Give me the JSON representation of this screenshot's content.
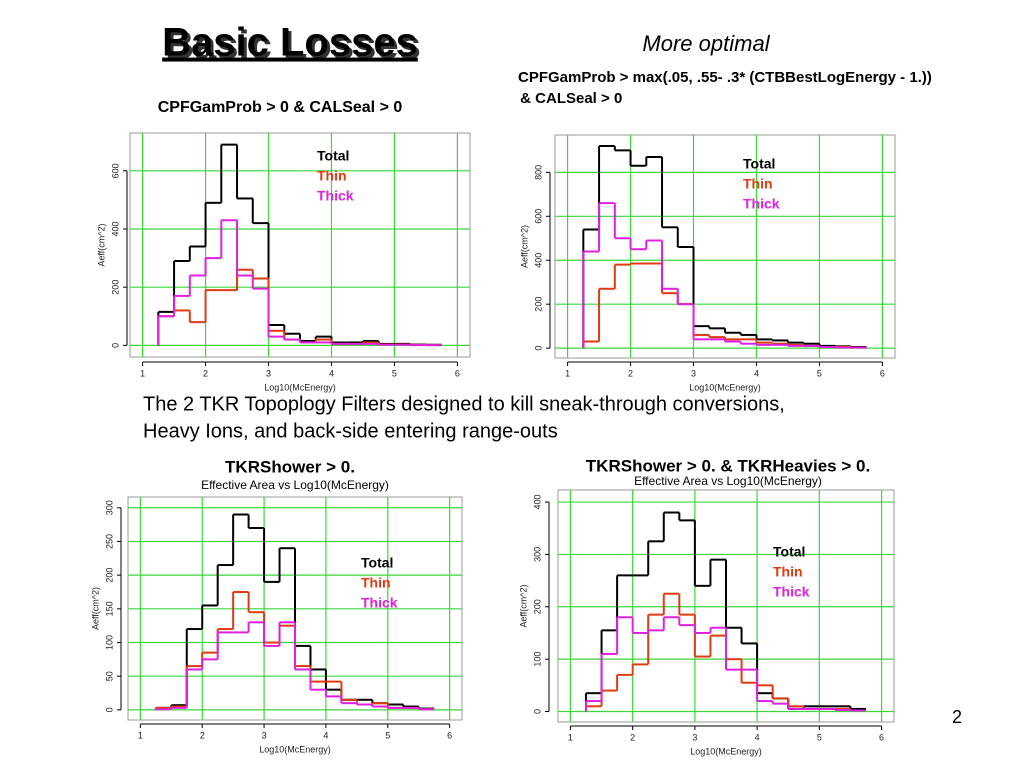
{
  "slide": {
    "title": "Basic Losses",
    "note": "More optimal",
    "body": [
      "The 2 TKR Topoplogy Filters designed to kill sneak-through conversions,",
      "Heavy Ions, and back-side entering range-outs"
    ],
    "page_number": 2
  },
  "chart_data": [
    {
      "type": "histogram",
      "title": [
        "CPFGamProb > 0 & CALSeal > 0"
      ],
      "x_label": "Log10(McEnergy)",
      "y_label": "Aeff(cm^2)",
      "bins": [
        1.25,
        1.5,
        1.75,
        2.0,
        2.25,
        2.5,
        2.75,
        3.0,
        3.25,
        3.5,
        3.75,
        4.0,
        4.25,
        4.5,
        4.75,
        5.0,
        5.25,
        5.5,
        5.75
      ],
      "series": [
        {
          "name": "Total",
          "color": "#000000",
          "values": [
            115,
            290,
            340,
            490,
            690,
            505,
            420,
            70,
            40,
            15,
            30,
            10,
            10,
            15,
            5,
            5,
            3,
            2
          ]
        },
        {
          "name": "Thin",
          "color": "#e03a10",
          "values": [
            100,
            120,
            80,
            190,
            190,
            260,
            230,
            50,
            20,
            10,
            20,
            5,
            5,
            10,
            3,
            3,
            2,
            1
          ]
        },
        {
          "name": "Thick",
          "color": "#e020e0",
          "values": [
            100,
            170,
            240,
            300,
            430,
            240,
            195,
            30,
            20,
            10,
            10,
            5,
            5,
            5,
            2,
            2,
            1,
            1
          ]
        }
      ],
      "xlim": [
        0.8,
        6.2
      ],
      "xticks": [
        1,
        2,
        3,
        4,
        5,
        6
      ],
      "ylim": [
        -40,
        730
      ],
      "yticks": [
        0,
        200,
        400,
        600
      ],
      "grid": true
    },
    {
      "type": "histogram",
      "title": [
        "CPFGamProb > max(.05, .55- .3* (CTBBestLogEnergy - 1.))",
        " & CALSeal > 0"
      ],
      "x_label": "Log10(McEnergy)",
      "y_label": "Aeff(cm^2)",
      "bins": [
        1.25,
        1.5,
        1.75,
        2.0,
        2.25,
        2.5,
        2.75,
        3.0,
        3.25,
        3.5,
        3.75,
        4.0,
        4.25,
        4.5,
        4.75,
        5.0,
        5.25,
        5.5,
        5.75
      ],
      "series": [
        {
          "name": "Total",
          "color": "#000000",
          "values": [
            540,
            920,
            900,
            830,
            870,
            550,
            460,
            100,
            90,
            70,
            60,
            40,
            35,
            25,
            20,
            10,
            8,
            5
          ]
        },
        {
          "name": "Thin",
          "color": "#e03a10",
          "values": [
            30,
            270,
            380,
            385,
            385,
            250,
            200,
            60,
            50,
            40,
            40,
            25,
            20,
            15,
            10,
            5,
            5,
            3
          ]
        },
        {
          "name": "Thick",
          "color": "#e020e0",
          "values": [
            440,
            660,
            500,
            450,
            490,
            270,
            200,
            40,
            40,
            30,
            20,
            15,
            15,
            10,
            10,
            5,
            3,
            2
          ]
        }
      ],
      "xlim": [
        0.8,
        6.2
      ],
      "xticks": [
        1,
        2,
        3,
        4,
        5,
        6
      ],
      "ylim": [
        -45,
        970
      ],
      "yticks": [
        0,
        200,
        400,
        600,
        800
      ],
      "grid": true
    },
    {
      "type": "histogram",
      "title": [
        "TKRShower > 0."
      ],
      "subtitle": "Effective Area vs Log10(McEnergy)",
      "x_label": "Log10(McEnergy)",
      "y_label": "Aeff(cm^2)",
      "bins": [
        1.25,
        1.5,
        1.75,
        2.0,
        2.25,
        2.5,
        2.75,
        3.0,
        3.25,
        3.5,
        3.75,
        4.0,
        4.25,
        4.5,
        4.75,
        5.0,
        5.25,
        5.5,
        5.75
      ],
      "series": [
        {
          "name": "Total",
          "color": "#000000",
          "values": [
            3,
            7,
            120,
            155,
            215,
            290,
            270,
            190,
            240,
            95,
            60,
            30,
            15,
            15,
            10,
            8,
            5,
            2
          ]
        },
        {
          "name": "Thin",
          "color": "#e03a10",
          "values": [
            3,
            5,
            65,
            85,
            120,
            175,
            145,
            100,
            125,
            65,
            42,
            42,
            15,
            8,
            10,
            3,
            3,
            1
          ]
        },
        {
          "name": "Thick",
          "color": "#e020e0",
          "values": [
            1,
            3,
            60,
            75,
            115,
            115,
            130,
            95,
            130,
            60,
            30,
            20,
            10,
            8,
            5,
            3,
            3,
            1
          ]
        }
      ],
      "xlim": [
        0.8,
        6.2
      ],
      "xticks": [
        1,
        2,
        3,
        4,
        5,
        6
      ],
      "ylim": [
        -15,
        316
      ],
      "yticks": [
        0,
        50,
        100,
        150,
        200,
        250,
        300
      ],
      "grid": true
    },
    {
      "type": "histogram",
      "title": [
        "TKRShower > 0. & TKRHeavies > 0."
      ],
      "subtitle": "Effective Area vs Log10(McEnergy)",
      "x_label": "Log10(McEnergy)",
      "y_label": "Aeff(cm^2)",
      "bins": [
        1.25,
        1.5,
        1.75,
        2.0,
        2.25,
        2.5,
        2.75,
        3.0,
        3.25,
        3.5,
        3.75,
        4.0,
        4.25,
        4.5,
        4.75,
        5.0,
        5.25,
        5.5,
        5.75
      ],
      "series": [
        {
          "name": "Total",
          "color": "#000000",
          "values": [
            35,
            155,
            260,
            260,
            325,
            380,
            365,
            240,
            290,
            160,
            130,
            35,
            25,
            5,
            10,
            10,
            10,
            5
          ]
        },
        {
          "name": "Thin",
          "color": "#e03a10",
          "values": [
            10,
            40,
            70,
            90,
            185,
            225,
            185,
            105,
            145,
            100,
            55,
            50,
            25,
            10,
            5,
            5,
            5,
            2
          ]
        },
        {
          "name": "Thick",
          "color": "#e020e0",
          "values": [
            20,
            110,
            180,
            150,
            155,
            180,
            165,
            150,
            160,
            80,
            80,
            20,
            15,
            5,
            5,
            5,
            3,
            2
          ]
        }
      ],
      "xlim": [
        0.8,
        6.2
      ],
      "xticks": [
        1,
        2,
        3,
        4,
        5,
        6
      ],
      "ylim": [
        -20,
        423
      ],
      "yticks": [
        0,
        100,
        200,
        300,
        400
      ],
      "grid": true
    }
  ]
}
